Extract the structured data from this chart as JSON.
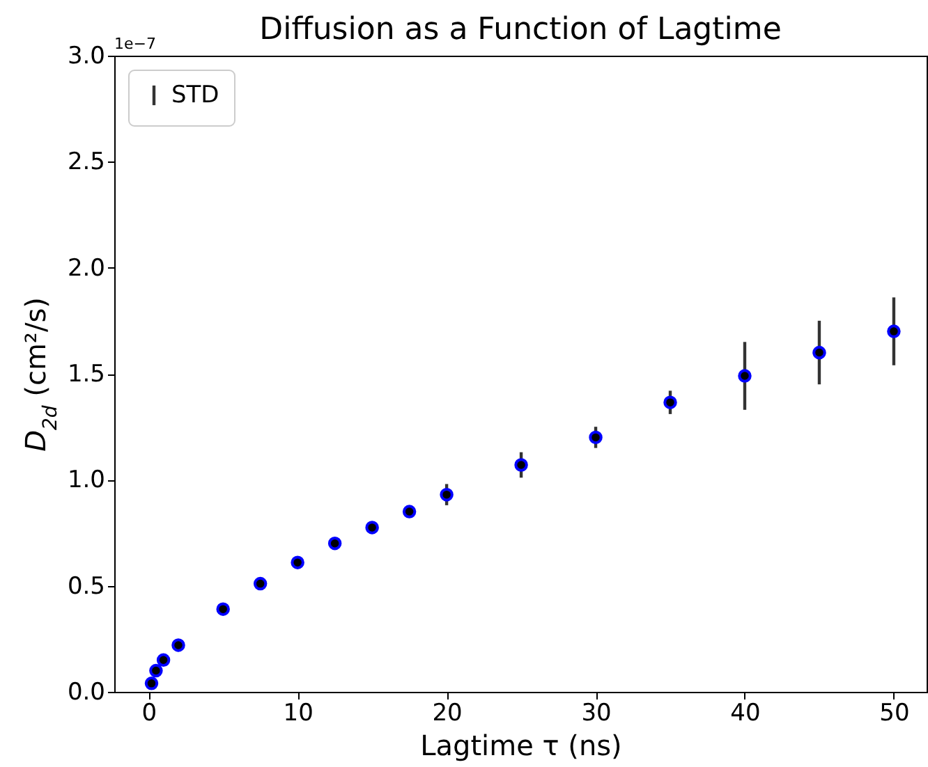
{
  "chart_data": {
    "type": "scatter",
    "title": "Diffusion as a Function of Lagtime",
    "xlabel": "Lagtime τ (ns)",
    "ylabel": "D$_{2d}$ (cm²/s)",
    "annotations": [
      "1e−7"
    ],
    "x": [
      0.2,
      0.5,
      1,
      2,
      5,
      7.5,
      10,
      12.5,
      15,
      17.5,
      20,
      25,
      30,
      35,
      40,
      45,
      50
    ],
    "series": [
      {
        "name": "STD",
        "color": "#0000ff",
        "values": [
          0.04,
          0.1,
          0.15,
          0.22,
          0.39,
          0.51,
          0.61,
          0.7,
          0.775,
          0.85,
          0.93,
          1.07,
          1.2,
          1.365,
          1.49,
          1.6,
          1.7
        ],
        "errors": [
          null,
          null,
          null,
          null,
          null,
          null,
          null,
          null,
          null,
          null,
          0.05,
          0.06,
          0.05,
          0.055,
          0.16,
          0.15,
          0.16
        ]
      }
    ],
    "xlim": [
      -2.3,
      52.2
    ],
    "xticks": [
      0,
      10,
      20,
      30,
      40,
      50
    ],
    "ylim": [
      0,
      3.0
    ],
    "yticks": [
      {
        "value": 0,
        "label": "0.0"
      },
      {
        "value": 0.5,
        "label": "0.5"
      },
      {
        "value": 1,
        "label": "1.0"
      },
      {
        "value": 1.5,
        "label": "1.5"
      },
      {
        "value": 2,
        "label": "2.0"
      },
      {
        "value": 2.5,
        "label": "2.5"
      },
      {
        "value": 3,
        "label": "3.0"
      }
    ],
    "marker": "circle",
    "legend": "top left",
    "grid": false
  }
}
